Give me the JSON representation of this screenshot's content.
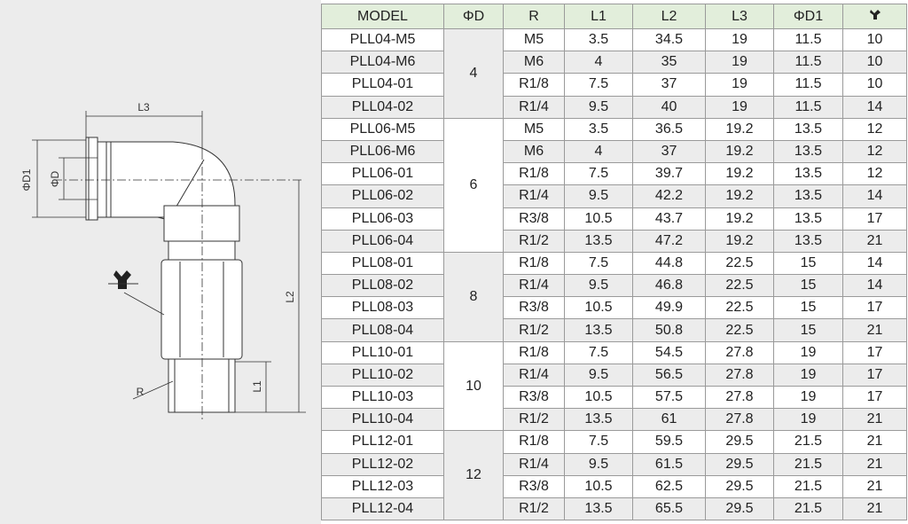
{
  "drawing": {
    "labels": {
      "l3": "L3",
      "d1": "ΦD1",
      "d": "ΦD",
      "l2": "L2",
      "l1": "L1",
      "r": "R"
    }
  },
  "table": {
    "headers": [
      "MODEL",
      "ΦD",
      "R",
      "L1",
      "L2",
      "L3",
      "ΦD1"
    ],
    "groups": [
      {
        "d": "4",
        "rows": [
          [
            "PLL04-M5",
            "M5",
            "3.5",
            "34.5",
            "19",
            "11.5",
            "10"
          ],
          [
            "PLL04-M6",
            "M6",
            "4",
            "35",
            "19",
            "11.5",
            "10"
          ],
          [
            "PLL04-01",
            "R1/8",
            "7.5",
            "37",
            "19",
            "11.5",
            "10"
          ],
          [
            "PLL04-02",
            "R1/4",
            "9.5",
            "40",
            "19",
            "11.5",
            "14"
          ]
        ]
      },
      {
        "d": "6",
        "rows": [
          [
            "PLL06-M5",
            "M5",
            "3.5",
            "36.5",
            "19.2",
            "13.5",
            "12"
          ],
          [
            "PLL06-M6",
            "M6",
            "4",
            "37",
            "19.2",
            "13.5",
            "12"
          ],
          [
            "PLL06-01",
            "R1/8",
            "7.5",
            "39.7",
            "19.2",
            "13.5",
            "12"
          ],
          [
            "PLL06-02",
            "R1/4",
            "9.5",
            "42.2",
            "19.2",
            "13.5",
            "14"
          ],
          [
            "PLL06-03",
            "R3/8",
            "10.5",
            "43.7",
            "19.2",
            "13.5",
            "17"
          ],
          [
            "PLL06-04",
            "R1/2",
            "13.5",
            "47.2",
            "19.2",
            "13.5",
            "21"
          ]
        ]
      },
      {
        "d": "8",
        "rows": [
          [
            "PLL08-01",
            "R1/8",
            "7.5",
            "44.8",
            "22.5",
            "15",
            "14"
          ],
          [
            "PLL08-02",
            "R1/4",
            "9.5",
            "46.8",
            "22.5",
            "15",
            "14"
          ],
          [
            "PLL08-03",
            "R3/8",
            "10.5",
            "49.9",
            "22.5",
            "15",
            "17"
          ],
          [
            "PLL08-04",
            "R1/2",
            "13.5",
            "50.8",
            "22.5",
            "15",
            "21"
          ]
        ]
      },
      {
        "d": "10",
        "rows": [
          [
            "PLL10-01",
            "R1/8",
            "7.5",
            "54.5",
            "27.8",
            "19",
            "17"
          ],
          [
            "PLL10-02",
            "R1/4",
            "9.5",
            "56.5",
            "27.8",
            "19",
            "17"
          ],
          [
            "PLL10-03",
            "R3/8",
            "10.5",
            "57.5",
            "27.8",
            "19",
            "17"
          ],
          [
            "PLL10-04",
            "R1/2",
            "13.5",
            "61",
            "27.8",
            "19",
            "21"
          ]
        ]
      },
      {
        "d": "12",
        "rows": [
          [
            "PLL12-01",
            "R1/8",
            "7.5",
            "59.5",
            "29.5",
            "21.5",
            "21"
          ],
          [
            "PLL12-02",
            "R1/4",
            "9.5",
            "61.5",
            "29.5",
            "21.5",
            "21"
          ],
          [
            "PLL12-03",
            "R3/8",
            "10.5",
            "62.5",
            "29.5",
            "21.5",
            "21"
          ],
          [
            "PLL12-04",
            "R1/2",
            "13.5",
            "65.5",
            "29.5",
            "21.5",
            "21"
          ]
        ]
      }
    ]
  }
}
